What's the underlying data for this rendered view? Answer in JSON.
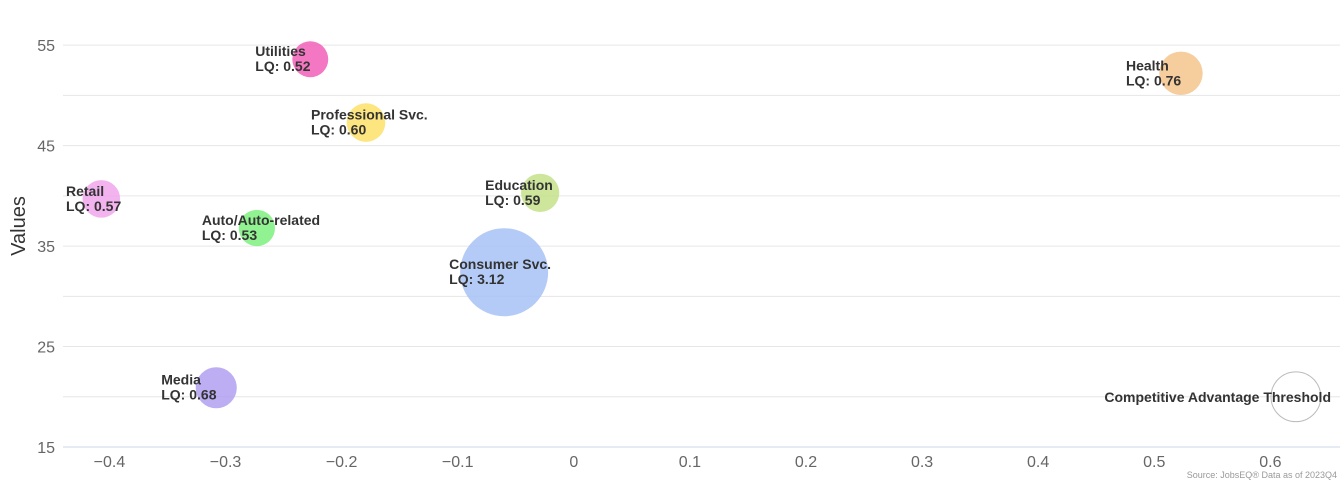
{
  "chart_data": {
    "type": "scatter",
    "ylabel": "Values",
    "xlabel": "",
    "xlim": [
      -0.44,
      0.66
    ],
    "ylim": [
      15,
      59
    ],
    "xticks": [
      "−0.4",
      "−0.3",
      "−0.2",
      "−0.1",
      "0",
      "0.1",
      "0.2",
      "0.3",
      "0.4",
      "0.5",
      "0.6"
    ],
    "xtick_values": [
      -0.4,
      -0.3,
      -0.2,
      -0.1,
      0,
      0.1,
      0.2,
      0.3,
      0.4,
      0.5,
      0.6
    ],
    "yticks": [
      "15",
      "25",
      "35",
      "45",
      "55"
    ],
    "ytick_values": [
      15,
      25,
      35,
      45,
      55
    ],
    "gridlines_y": [
      15,
      20,
      25,
      30,
      35,
      40,
      45,
      50,
      55,
      60
    ],
    "grid": "horizontal",
    "series": [
      {
        "name": "Utilities",
        "x": -0.227,
        "y": 53.6,
        "lq": 0.52,
        "lq_label": "LQ: 0.52",
        "color": "#f25fb8"
      },
      {
        "name": "Professional Svc.",
        "x": -0.179,
        "y": 47.3,
        "lq": 0.6,
        "lq_label": "LQ: 0.60",
        "color": "#fde068"
      },
      {
        "name": "Health",
        "x": 0.523,
        "y": 52.2,
        "lq": 0.76,
        "lq_label": "LQ: 0.76",
        "color": "#f4c48b"
      },
      {
        "name": "Retail",
        "x": -0.407,
        "y": 39.7,
        "lq": 0.57,
        "lq_label": "LQ: 0.57",
        "color": "#f0a6ec"
      },
      {
        "name": "Education",
        "x": -0.029,
        "y": 40.3,
        "lq": 0.59,
        "lq_label": "LQ: 0.59",
        "color": "#c4e28a"
      },
      {
        "name": "Auto/Auto-related",
        "x": -0.273,
        "y": 36.8,
        "lq": 0.53,
        "lq_label": "LQ: 0.53",
        "color": "#7ef07e"
      },
      {
        "name": "Consumer Svc.",
        "x": -0.06,
        "y": 32.4,
        "lq": 3.12,
        "lq_label": "LQ: 3.12",
        "color": "#a6c2f4"
      },
      {
        "name": "Media",
        "x": -0.308,
        "y": 20.9,
        "lq": 0.68,
        "lq_label": "LQ: 0.68",
        "color": "#b19ff1"
      }
    ],
    "threshold": {
      "name": "Competitive Advantage Threshold",
      "x": 0.622,
      "y": 20.0,
      "lq": 1.0
    },
    "source": "Source: JobsEQ® Data as of 2023Q4"
  }
}
